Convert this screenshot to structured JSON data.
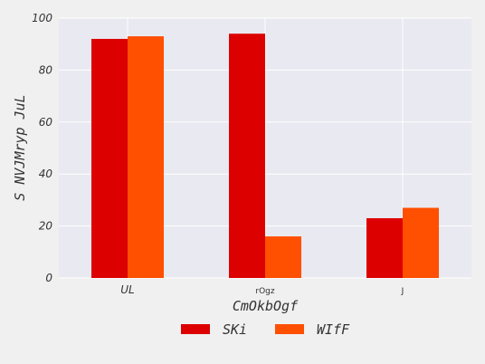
{
  "chart_data": {
    "type": "bar",
    "title": "",
    "xlabel": "CmOkbOgf",
    "ylabel": "S NVJMryp JuL",
    "categories": [
      "UL",
      "rOgz",
      "J"
    ],
    "series": [
      {
        "name": "SKi",
        "values": [
          92,
          94,
          23
        ],
        "color": "#dd0000"
      },
      {
        "name": "WIfF",
        "values": [
          93,
          16,
          27
        ],
        "color": "#ff4f00"
      }
    ],
    "ylim": [
      0,
      100
    ],
    "yticks": [
      0,
      20,
      40,
      60,
      80,
      100
    ],
    "grid": true,
    "legend_position": "bottom-center",
    "plot_background": "#e9e9f1",
    "figure_background": "#f0f0f0"
  }
}
